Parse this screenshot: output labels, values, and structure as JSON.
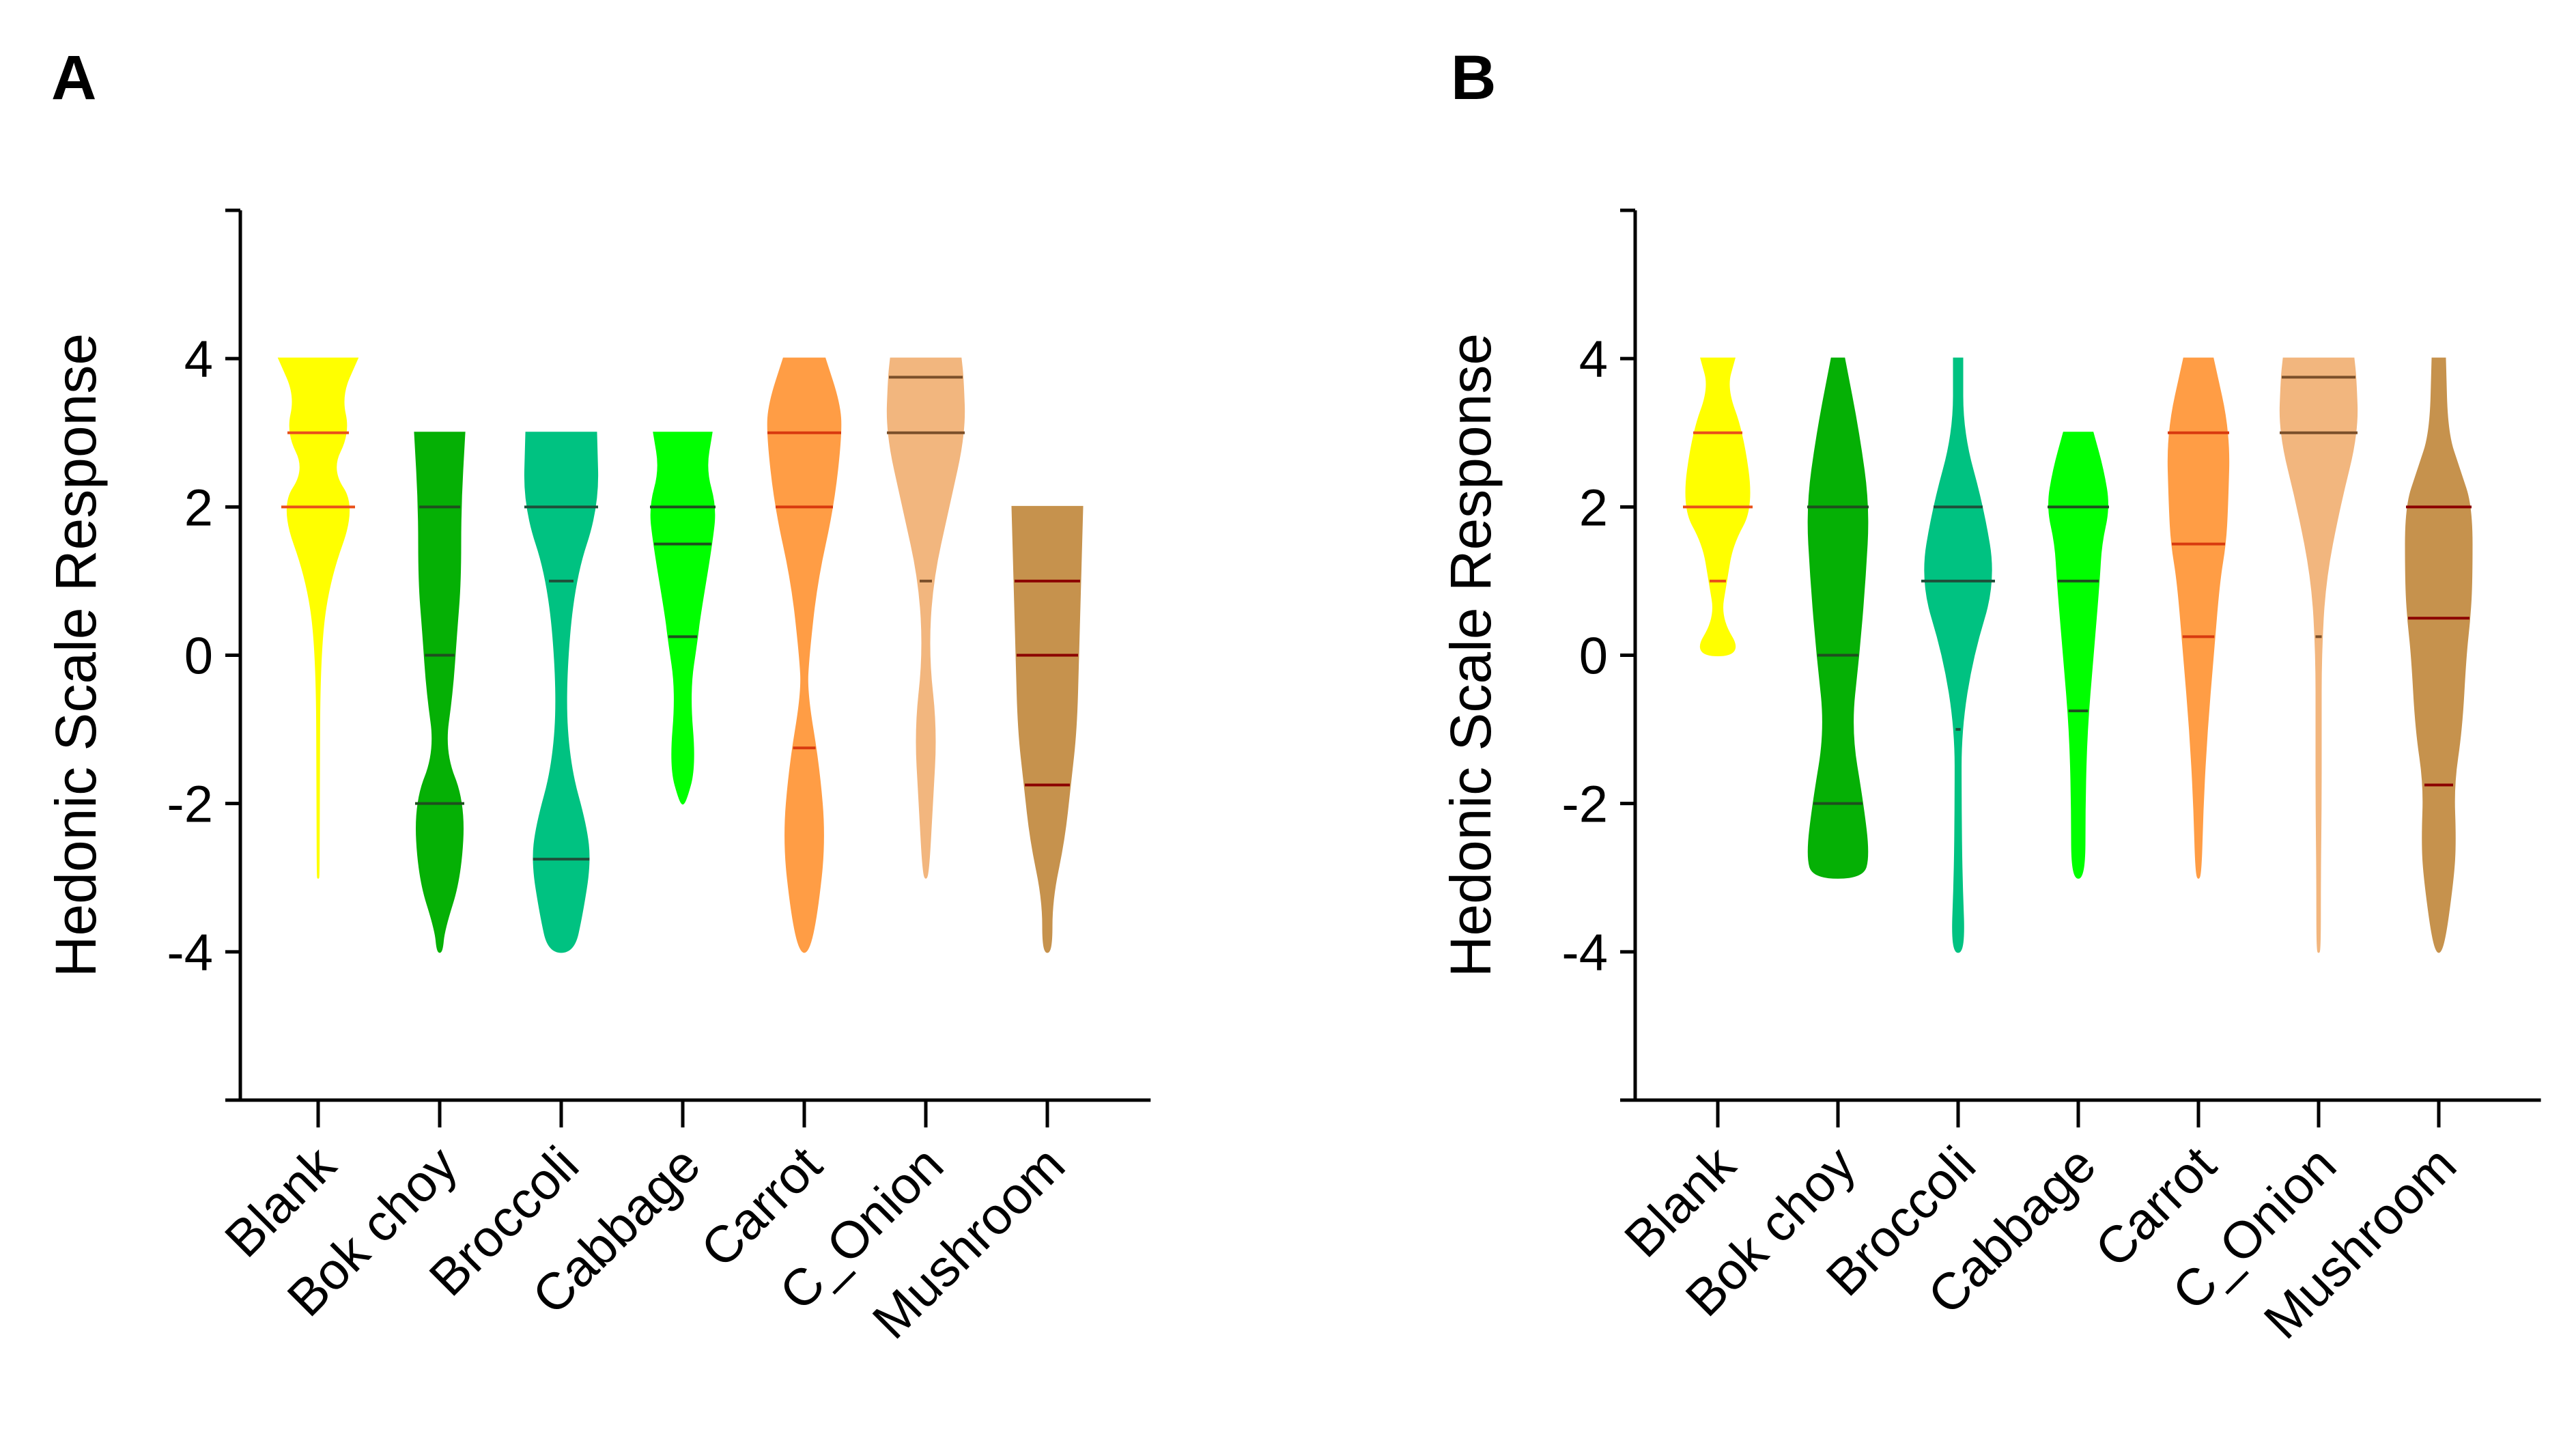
{
  "chart_data": [
    {
      "type": "violin",
      "panel_label": "A",
      "ylabel": "Hedonic Scale Response",
      "ylim": [
        -6,
        6
      ],
      "yticks": [
        "4",
        "2",
        "0",
        "-2",
        "-4"
      ],
      "categories": [
        "Blank",
        "Bok choy",
        "Broccoli",
        "Cabbage",
        "Carrot",
        "C_Onion",
        "Mushroom"
      ],
      "violins": [
        {
          "name": "Blank",
          "color": "#FFFF00",
          "line_color": "#E8501A",
          "profile": [
            [
              4,
              0.95
            ],
            [
              3.5,
              0.55
            ],
            [
              3,
              0.75
            ],
            [
              2.5,
              0.3
            ],
            [
              2,
              0.9
            ],
            [
              1,
              0.25
            ],
            [
              0,
              0.03
            ],
            [
              -2,
              0.015
            ],
            [
              -3,
              0.01
            ]
          ],
          "lines": [
            3,
            2
          ]
        },
        {
          "name": "Bok choy",
          "color": "#05B005",
          "line_color": "#1F4F1F",
          "profile": [
            [
              3,
              0.6
            ],
            [
              2,
              0.5
            ],
            [
              1,
              0.5
            ],
            [
              0.3,
              0.4
            ],
            [
              -0.5,
              0.3
            ],
            [
              -1.3,
              0.1
            ],
            [
              -2,
              0.6
            ],
            [
              -3,
              0.5
            ],
            [
              -3.7,
              0.1
            ],
            [
              -4,
              0.05
            ]
          ],
          "lines": [
            2,
            0,
            -2
          ]
        },
        {
          "name": "Broccoli",
          "color": "#00C281",
          "line_color": "#1F4F3A",
          "profile": [
            [
              3,
              0.85
            ],
            [
              2,
              0.9
            ],
            [
              1,
              0.3
            ],
            [
              -0.5,
              0.08
            ],
            [
              -1.5,
              0.2
            ],
            [
              -2.3,
              0.6
            ],
            [
              -2.8,
              0.7
            ],
            [
              -3.5,
              0.5
            ],
            [
              -4,
              0.3
            ]
          ],
          "lines": [
            2,
            1,
            -2.75
          ]
        },
        {
          "name": "Cabbage",
          "color": "#00FF00",
          "line_color": "#1F4F1F",
          "profile": [
            [
              3,
              0.7
            ],
            [
              2.5,
              0.55
            ],
            [
              2,
              0.8
            ],
            [
              1.5,
              0.7
            ],
            [
              0.5,
              0.4
            ],
            [
              0.25,
              0.35
            ],
            [
              -0.5,
              0.15
            ],
            [
              -1.5,
              0.3
            ],
            [
              -2,
              0.05
            ]
          ],
          "lines": [
            2,
            1.5,
            0.25
          ]
        },
        {
          "name": "Carrot",
          "color": "#FF9D45",
          "line_color": "#D83A0F",
          "profile": [
            [
              4,
              0.5
            ],
            [
              3.4,
              0.85
            ],
            [
              3,
              0.9
            ],
            [
              2,
              0.7
            ],
            [
              1,
              0.3
            ],
            [
              0,
              0.1
            ],
            [
              -0.5,
              0.05
            ],
            [
              -1.5,
              0.35
            ],
            [
              -2.5,
              0.5
            ],
            [
              -3.5,
              0.3
            ],
            [
              -4,
              0.1
            ]
          ],
          "lines": [
            3,
            2,
            -1.25
          ]
        },
        {
          "name": "C_Onion",
          "color": "#F2B67E",
          "line_color": "#7A4F2A",
          "profile": [
            [
              4,
              0.85
            ],
            [
              3.75,
              0.9
            ],
            [
              3,
              0.95
            ],
            [
              2,
              0.55
            ],
            [
              1,
              0.15
            ],
            [
              0,
              0.05
            ],
            [
              -1,
              0.25
            ],
            [
              -2,
              0.15
            ],
            [
              -3,
              0.05
            ]
          ],
          "lines": [
            3.75,
            3,
            1
          ]
        },
        {
          "name": "Mushroom",
          "color": "#C6924D",
          "line_color": "#8B0000",
          "profile": [
            [
              2,
              0.85
            ],
            [
              1,
              0.8
            ],
            [
              0,
              0.75
            ],
            [
              -1,
              0.7
            ],
            [
              -1.75,
              0.55
            ],
            [
              -2.5,
              0.4
            ],
            [
              -3.3,
              0.1
            ],
            [
              -4,
              0.1
            ]
          ],
          "lines": [
            1,
            0,
            -1.75
          ]
        }
      ]
    },
    {
      "type": "violin",
      "panel_label": "B",
      "ylabel": "Hedonic Scale Response",
      "ylim": [
        -6,
        6
      ],
      "yticks": [
        "4",
        "2",
        "0",
        "-2",
        "-4"
      ],
      "categories": [
        "Blank",
        "Bok choy",
        "Broccoli",
        "Cabbage",
        "Carrot",
        "C_Onion",
        "Mushroom"
      ],
      "violins": [
        {
          "name": "Blank",
          "color": "#FFFF00",
          "line_color": "#E8501A",
          "profile": [
            [
              4,
              0.4
            ],
            [
              3.6,
              0.2
            ],
            [
              3,
              0.6
            ],
            [
              2,
              0.85
            ],
            [
              1.5,
              0.35
            ],
            [
              1,
              0.2
            ],
            [
              0.5,
              0.05
            ],
            [
              0,
              0.6
            ]
          ],
          "lines": [
            3,
            2,
            1
          ]
        },
        {
          "name": "Bok choy",
          "color": "#05B005",
          "line_color": "#1F4F1F",
          "profile": [
            [
              4,
              0.15
            ],
            [
              3,
              0.5
            ],
            [
              2,
              0.75
            ],
            [
              1,
              0.65
            ],
            [
              0,
              0.5
            ],
            [
              -1,
              0.3
            ],
            [
              -2,
              0.6
            ],
            [
              -2.7,
              0.75
            ],
            [
              -3,
              0.6
            ]
          ],
          "lines": [
            2,
            0,
            -2
          ]
        },
        {
          "name": "Broccoli",
          "color": "#00C281",
          "line_color": "#1F4F3A",
          "profile": [
            [
              4,
              0.1
            ],
            [
              3,
              0.1
            ],
            [
              2,
              0.6
            ],
            [
              1,
              0.9
            ],
            [
              0,
              0.35
            ],
            [
              -1,
              0.06
            ],
            [
              -2,
              0.06
            ],
            [
              -3,
              0.08
            ],
            [
              -4,
              0.15
            ]
          ],
          "lines": [
            2,
            1,
            -1
          ]
        },
        {
          "name": "Cabbage",
          "color": "#00FF00",
          "line_color": "#1F4F1F",
          "profile": [
            [
              3,
              0.35
            ],
            [
              2.5,
              0.6
            ],
            [
              2,
              0.75
            ],
            [
              1.5,
              0.55
            ],
            [
              1,
              0.5
            ],
            [
              0,
              0.35
            ],
            [
              -1,
              0.2
            ],
            [
              -2,
              0.15
            ],
            [
              -3,
              0.15
            ]
          ],
          "lines": [
            2,
            1,
            -0.75
          ]
        },
        {
          "name": "Carrot",
          "color": "#FF9D45",
          "line_color": "#D83A0F",
          "profile": [
            [
              4,
              0.35
            ],
            [
              3,
              0.75
            ],
            [
              2,
              0.7
            ],
            [
              1.5,
              0.65
            ],
            [
              1,
              0.5
            ],
            [
              0,
              0.35
            ],
            [
              -1,
              0.2
            ],
            [
              -2,
              0.1
            ],
            [
              -3,
              0.05
            ]
          ],
          "lines": [
            3,
            1.5,
            0.25
          ]
        },
        {
          "name": "C_Onion",
          "color": "#F2B67E",
          "line_color": "#7A4F2A",
          "profile": [
            [
              4,
              0.85
            ],
            [
              3.75,
              0.9
            ],
            [
              3,
              0.95
            ],
            [
              2,
              0.5
            ],
            [
              1,
              0.15
            ],
            [
              0,
              0.05
            ],
            [
              -1,
              0.05
            ],
            [
              -2,
              0.05
            ],
            [
              -3,
              0.03
            ],
            [
              -4,
              0.03
            ]
          ],
          "lines": [
            3.75,
            3,
            0.25
          ]
        },
        {
          "name": "Mushroom",
          "color": "#C6924D",
          "line_color": "#8B0000",
          "profile": [
            [
              4,
              0.15
            ],
            [
              3,
              0.2
            ],
            [
              2.5,
              0.5
            ],
            [
              2,
              0.8
            ],
            [
              1,
              0.8
            ],
            [
              0.5,
              0.75
            ],
            [
              0,
              0.65
            ],
            [
              -1,
              0.55
            ],
            [
              -1.75,
              0.35
            ],
            [
              -2.5,
              0.4
            ],
            [
              -3,
              0.35
            ],
            [
              -4,
              0.1
            ]
          ],
          "lines": [
            2,
            0.5,
            -1.75
          ]
        }
      ]
    }
  ]
}
